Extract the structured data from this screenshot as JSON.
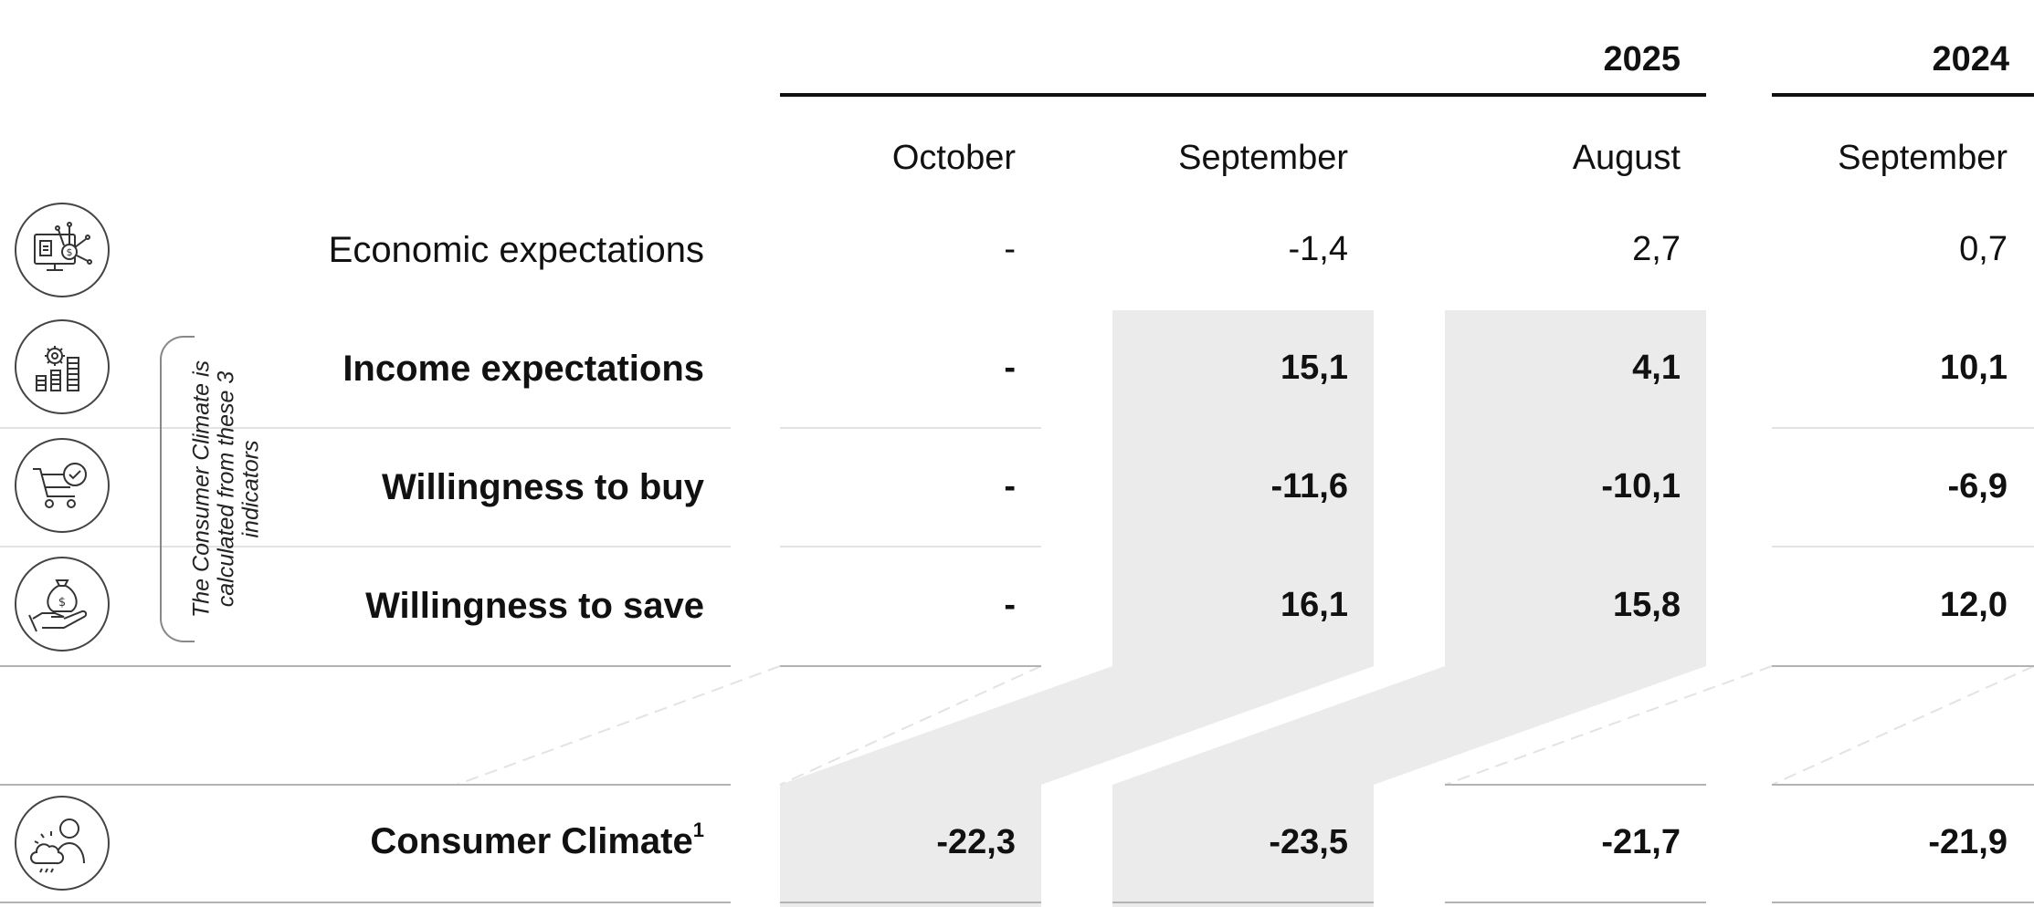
{
  "years": {
    "y2025": "2025",
    "y2024": "2024"
  },
  "months": [
    "October",
    "September",
    "August",
    "September"
  ],
  "bracket_note": "The Consumer Climate is calculated from these 3 indicators",
  "rows": [
    {
      "label": "Economic expectations",
      "icon": "monitor-money-network-icon",
      "values": [
        "-",
        "-1,4",
        "2,7",
        "0,7"
      ]
    },
    {
      "label": "Income expectations",
      "icon": "gear-coin-stacks-icon",
      "values": [
        "-",
        "15,1",
        "4,1",
        "10,1"
      ]
    },
    {
      "label": "Willingness to buy",
      "icon": "shopping-cart-check-icon",
      "values": [
        "-",
        "-11,6",
        "-10,1",
        "-6,9"
      ]
    },
    {
      "label": "Willingness to save",
      "icon": "hand-money-bag-icon",
      "values": [
        "-",
        "16,1",
        "15,8",
        "12,0"
      ]
    }
  ],
  "climate": {
    "label": "Consumer Climate",
    "footnote": "1",
    "icon": "person-weather-cloud-icon",
    "values": [
      "-22,3",
      "-23,5",
      "-21,7",
      "-21,9"
    ]
  }
}
